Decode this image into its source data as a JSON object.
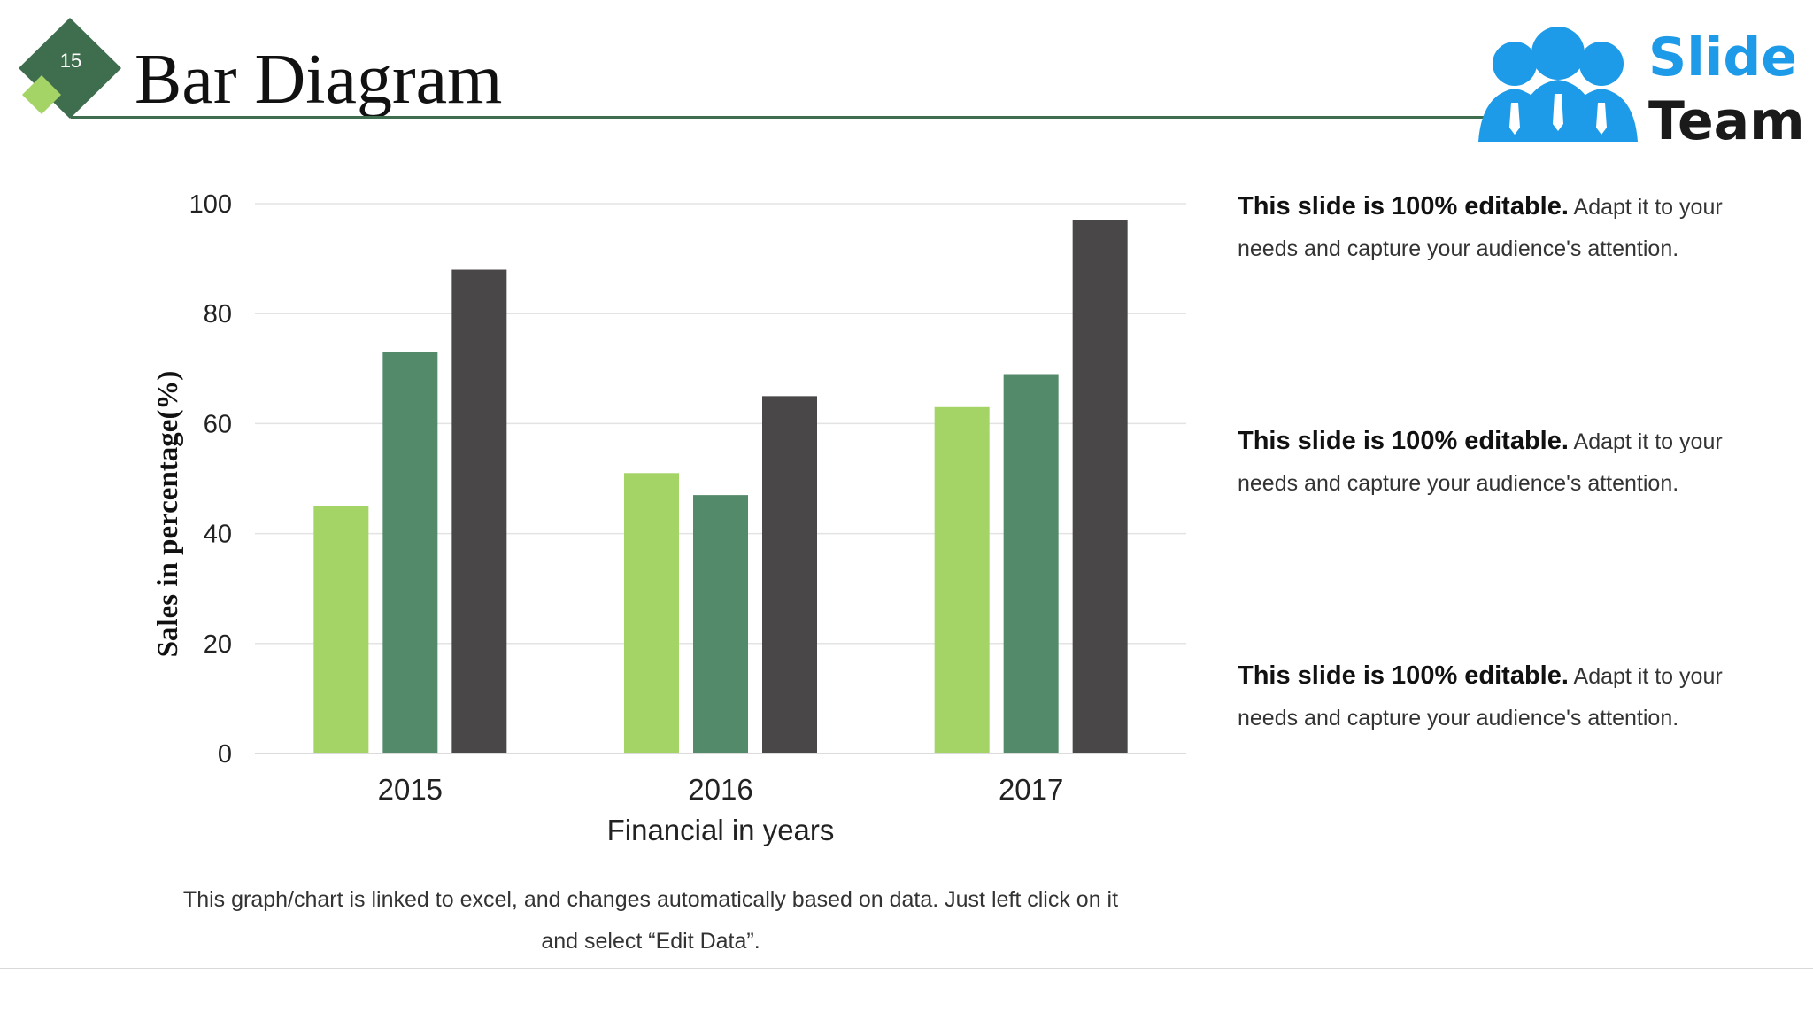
{
  "slide": {
    "number": "15",
    "title": "Bar Diagram",
    "logo": {
      "line1": "Slide",
      "line2": "Team",
      "color": "#1e9be8"
    }
  },
  "text_blocks": [
    {
      "bold": "This slide is 100% editable.",
      "text": "Adapt it to your needs and capture your audience's attention."
    },
    {
      "bold": "This slide is 100% editable.",
      "text": "Adapt it to your needs and capture your audience's attention."
    },
    {
      "bold": "This slide is 100% editable.",
      "text": "Adapt it to your needs and capture your audience's attention."
    }
  ],
  "note": "This graph/chart is linked to excel, and changes automatically based on data. Just left click on it and select “Edit Data”.",
  "chart_data": {
    "type": "bar",
    "categories": [
      "2015",
      "2016",
      "2017"
    ],
    "series": [
      {
        "values": [
          45,
          51,
          63
        ],
        "color": "#a4d465"
      },
      {
        "values": [
          73,
          47,
          69
        ],
        "color": "#528a6a"
      },
      {
        "values": [
          88,
          65,
          97
        ],
        "color": "#4a4749"
      }
    ],
    "xlabel": "Financial in years",
    "ylabel": "Sales in percentage(%)",
    "ylim": [
      0,
      100
    ],
    "yticks": [
      0,
      20,
      40,
      60,
      80,
      100
    ],
    "grid": true,
    "legend": "none"
  }
}
